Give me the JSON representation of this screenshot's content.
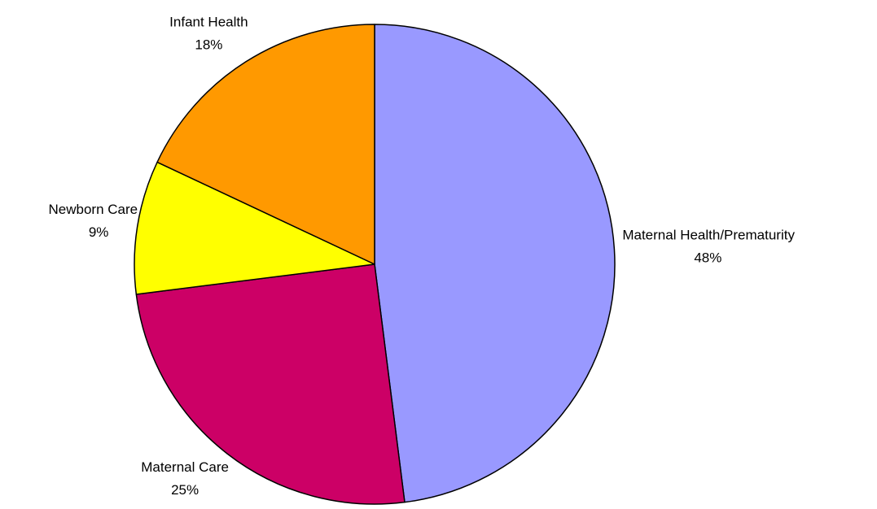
{
  "chart_data": {
    "type": "pie",
    "categories": [
      "Maternal Health/Prematurity",
      "Maternal Care",
      "Newborn Care",
      "Infant Health"
    ],
    "values": [
      48,
      25,
      9,
      18
    ],
    "value_labels": [
      "48%",
      "25%",
      "9%",
      "18%"
    ],
    "colors": [
      "#9999ff",
      "#cc0066",
      "#ffff00",
      "#ff9900"
    ]
  }
}
